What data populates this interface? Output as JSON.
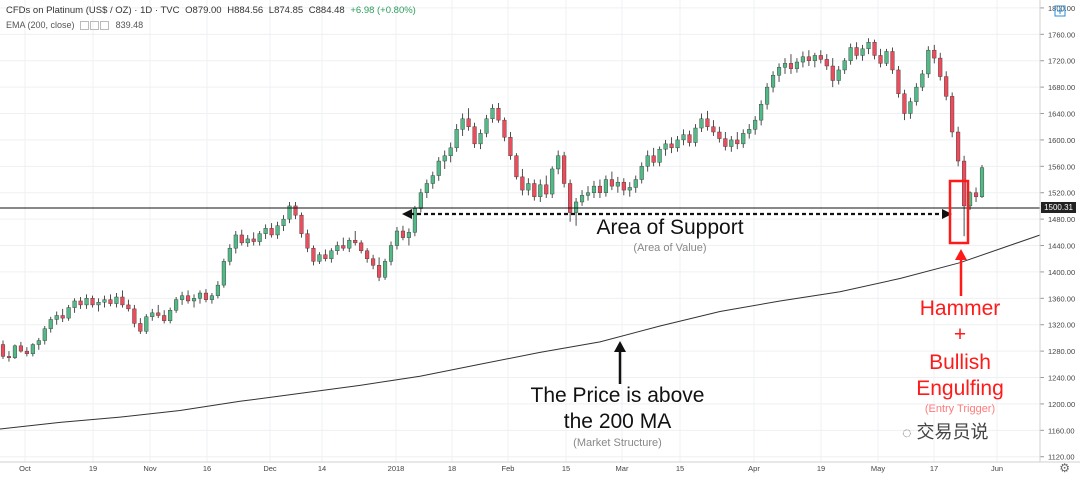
{
  "header": {
    "symbol": "CFDs on Platinum (US$ / OZ) · 1D · TVC",
    "open": "O879.00",
    "high": "H884.56",
    "low": "L874.85",
    "close": "C884.48",
    "change": "+6.98 (+0.80%)"
  },
  "indicator": {
    "label": "EMA (200, close)",
    "value": "839.48"
  },
  "price_tag": "1500.31",
  "annotations": {
    "support_title": "Area of Support",
    "support_sub": "(Area of Value)",
    "ma_title_1": "The Price is above",
    "ma_title_2": "the 200 MA",
    "ma_sub": "(Market Structure)",
    "hammer": "Hammer",
    "plus": "+",
    "bullish": "Bullish",
    "engulfing": "Engulfing",
    "entry_sub": "(Entry Trigger)"
  },
  "watermark": "交易员说",
  "colors": {
    "up": "#53b987",
    "down": "#eb4d5c",
    "accent": "#ff1a1a"
  },
  "chart_data": {
    "type": "candlestick",
    "y_ticks": [
      1120,
      1160,
      1200,
      1240,
      1280,
      1320,
      1360,
      1400,
      1440,
      1480,
      1520,
      1560,
      1600,
      1640,
      1680,
      1720,
      1760,
      1800
    ],
    "ylim": [
      1112,
      1812
    ],
    "x_tick_labels": [
      "Oct",
      "19",
      "Nov",
      "16",
      "Dec",
      "14",
      "2018",
      "18",
      "Feb",
      "15",
      "Mar",
      "15",
      "Apr",
      "19",
      "May",
      "17",
      "Jun"
    ],
    "support_level": 1500,
    "ohlc": [
      [
        1290,
        1296,
        1268,
        1272
      ],
      [
        1272,
        1280,
        1264,
        1270
      ],
      [
        1270,
        1290,
        1268,
        1288
      ],
      [
        1288,
        1294,
        1278,
        1280
      ],
      [
        1280,
        1286,
        1272,
        1276
      ],
      [
        1276,
        1292,
        1272,
        1290
      ],
      [
        1290,
        1300,
        1282,
        1296
      ],
      [
        1296,
        1318,
        1290,
        1314
      ],
      [
        1314,
        1332,
        1308,
        1328
      ],
      [
        1328,
        1340,
        1320,
        1334
      ],
      [
        1334,
        1344,
        1324,
        1330
      ],
      [
        1330,
        1350,
        1326,
        1346
      ],
      [
        1346,
        1360,
        1338,
        1356
      ],
      [
        1356,
        1362,
        1344,
        1350
      ],
      [
        1350,
        1366,
        1344,
        1360
      ],
      [
        1360,
        1364,
        1346,
        1350
      ],
      [
        1350,
        1360,
        1340,
        1354
      ],
      [
        1354,
        1364,
        1346,
        1358
      ],
      [
        1358,
        1366,
        1348,
        1352
      ],
      [
        1352,
        1368,
        1346,
        1362
      ],
      [
        1362,
        1372,
        1346,
        1350
      ],
      [
        1350,
        1358,
        1340,
        1344
      ],
      [
        1344,
        1350,
        1316,
        1322
      ],
      [
        1322,
        1330,
        1306,
        1310
      ],
      [
        1310,
        1336,
        1306,
        1332
      ],
      [
        1332,
        1344,
        1326,
        1338
      ],
      [
        1338,
        1350,
        1330,
        1334
      ],
      [
        1334,
        1342,
        1322,
        1326
      ],
      [
        1326,
        1346,
        1322,
        1342
      ],
      [
        1342,
        1362,
        1338,
        1358
      ],
      [
        1358,
        1370,
        1350,
        1364
      ],
      [
        1364,
        1372,
        1352,
        1356
      ],
      [
        1356,
        1366,
        1346,
        1360
      ],
      [
        1360,
        1372,
        1352,
        1368
      ],
      [
        1368,
        1374,
        1354,
        1358
      ],
      [
        1358,
        1368,
        1352,
        1364
      ],
      [
        1364,
        1386,
        1360,
        1380
      ],
      [
        1380,
        1420,
        1376,
        1416
      ],
      [
        1416,
        1442,
        1410,
        1436
      ],
      [
        1436,
        1462,
        1428,
        1456
      ],
      [
        1456,
        1464,
        1440,
        1444
      ],
      [
        1444,
        1456,
        1438,
        1450
      ],
      [
        1450,
        1460,
        1440,
        1446
      ],
      [
        1446,
        1462,
        1440,
        1458
      ],
      [
        1458,
        1472,
        1450,
        1466
      ],
      [
        1466,
        1474,
        1452,
        1456
      ],
      [
        1456,
        1476,
        1450,
        1470
      ],
      [
        1470,
        1486,
        1462,
        1480
      ],
      [
        1480,
        1506,
        1474,
        1500
      ],
      [
        1500,
        1506,
        1480,
        1486
      ],
      [
        1486,
        1490,
        1452,
        1458
      ],
      [
        1458,
        1464,
        1430,
        1436
      ],
      [
        1436,
        1440,
        1410,
        1416
      ],
      [
        1416,
        1430,
        1412,
        1426
      ],
      [
        1426,
        1434,
        1416,
        1420
      ],
      [
        1420,
        1436,
        1414,
        1432
      ],
      [
        1432,
        1446,
        1426,
        1440
      ],
      [
        1440,
        1452,
        1432,
        1436
      ],
      [
        1436,
        1452,
        1430,
        1448
      ],
      [
        1448,
        1462,
        1440,
        1444
      ],
      [
        1444,
        1448,
        1428,
        1432
      ],
      [
        1432,
        1436,
        1414,
        1420
      ],
      [
        1420,
        1426,
        1404,
        1410
      ],
      [
        1410,
        1422,
        1386,
        1392
      ],
      [
        1392,
        1420,
        1388,
        1416
      ],
      [
        1416,
        1446,
        1410,
        1440
      ],
      [
        1440,
        1468,
        1434,
        1462
      ],
      [
        1462,
        1470,
        1448,
        1452
      ],
      [
        1452,
        1466,
        1440,
        1460
      ],
      [
        1460,
        1500,
        1454,
        1496
      ],
      [
        1496,
        1526,
        1490,
        1520
      ],
      [
        1520,
        1540,
        1512,
        1534
      ],
      [
        1534,
        1552,
        1526,
        1546
      ],
      [
        1546,
        1574,
        1538,
        1568
      ],
      [
        1568,
        1584,
        1556,
        1576
      ],
      [
        1576,
        1596,
        1566,
        1588
      ],
      [
        1588,
        1624,
        1582,
        1616
      ],
      [
        1616,
        1640,
        1606,
        1632
      ],
      [
        1632,
        1648,
        1614,
        1620
      ],
      [
        1620,
        1626,
        1588,
        1594
      ],
      [
        1594,
        1616,
        1586,
        1610
      ],
      [
        1610,
        1638,
        1604,
        1632
      ],
      [
        1632,
        1654,
        1626,
        1648
      ],
      [
        1648,
        1656,
        1626,
        1630
      ],
      [
        1630,
        1634,
        1598,
        1604
      ],
      [
        1604,
        1612,
        1570,
        1576
      ],
      [
        1576,
        1580,
        1540,
        1544
      ],
      [
        1544,
        1556,
        1516,
        1524
      ],
      [
        1524,
        1542,
        1516,
        1534
      ],
      [
        1534,
        1540,
        1508,
        1514
      ],
      [
        1514,
        1540,
        1506,
        1532
      ],
      [
        1532,
        1546,
        1512,
        1518
      ],
      [
        1518,
        1560,
        1512,
        1556
      ],
      [
        1556,
        1584,
        1548,
        1576
      ],
      [
        1576,
        1582,
        1528,
        1534
      ],
      [
        1534,
        1540,
        1476,
        1490
      ],
      [
        1490,
        1512,
        1470,
        1506
      ],
      [
        1506,
        1524,
        1500,
        1516
      ],
      [
        1516,
        1530,
        1508,
        1520
      ],
      [
        1520,
        1538,
        1512,
        1530
      ],
      [
        1530,
        1540,
        1512,
        1520
      ],
      [
        1520,
        1546,
        1514,
        1540
      ],
      [
        1540,
        1552,
        1524,
        1530
      ],
      [
        1530,
        1544,
        1520,
        1536
      ],
      [
        1536,
        1542,
        1516,
        1524
      ],
      [
        1524,
        1536,
        1514,
        1528
      ],
      [
        1528,
        1546,
        1520,
        1540
      ],
      [
        1540,
        1566,
        1534,
        1560
      ],
      [
        1560,
        1584,
        1552,
        1576
      ],
      [
        1576,
        1588,
        1560,
        1566
      ],
      [
        1566,
        1590,
        1560,
        1586
      ],
      [
        1586,
        1600,
        1576,
        1594
      ],
      [
        1594,
        1604,
        1580,
        1588
      ],
      [
        1588,
        1606,
        1582,
        1600
      ],
      [
        1600,
        1616,
        1592,
        1608
      ],
      [
        1608,
        1614,
        1590,
        1596
      ],
      [
        1596,
        1624,
        1590,
        1618
      ],
      [
        1618,
        1640,
        1612,
        1632
      ],
      [
        1632,
        1644,
        1614,
        1620
      ],
      [
        1620,
        1630,
        1606,
        1612
      ],
      [
        1612,
        1620,
        1596,
        1602
      ],
      [
        1602,
        1612,
        1584,
        1590
      ],
      [
        1590,
        1606,
        1582,
        1600
      ],
      [
        1600,
        1612,
        1586,
        1594
      ],
      [
        1594,
        1616,
        1588,
        1610
      ],
      [
        1610,
        1624,
        1602,
        1616
      ],
      [
        1616,
        1636,
        1608,
        1630
      ],
      [
        1630,
        1660,
        1622,
        1654
      ],
      [
        1654,
        1686,
        1646,
        1680
      ],
      [
        1680,
        1704,
        1672,
        1698
      ],
      [
        1698,
        1716,
        1688,
        1710
      ],
      [
        1710,
        1724,
        1700,
        1716
      ],
      [
        1716,
        1730,
        1700,
        1708
      ],
      [
        1708,
        1724,
        1702,
        1718
      ],
      [
        1718,
        1734,
        1710,
        1726
      ],
      [
        1726,
        1736,
        1712,
        1720
      ],
      [
        1720,
        1732,
        1710,
        1728
      ],
      [
        1728,
        1736,
        1716,
        1722
      ],
      [
        1722,
        1730,
        1706,
        1712
      ],
      [
        1712,
        1724,
        1680,
        1690
      ],
      [
        1690,
        1712,
        1684,
        1706
      ],
      [
        1706,
        1724,
        1700,
        1720
      ],
      [
        1720,
        1746,
        1714,
        1740
      ],
      [
        1740,
        1748,
        1722,
        1728
      ],
      [
        1728,
        1744,
        1720,
        1738
      ],
      [
        1738,
        1754,
        1730,
        1748
      ],
      [
        1748,
        1752,
        1722,
        1728
      ],
      [
        1728,
        1738,
        1710,
        1716
      ],
      [
        1716,
        1738,
        1712,
        1734
      ],
      [
        1734,
        1740,
        1700,
        1706
      ],
      [
        1706,
        1712,
        1664,
        1670
      ],
      [
        1670,
        1676,
        1630,
        1640
      ],
      [
        1640,
        1664,
        1632,
        1658
      ],
      [
        1658,
        1686,
        1652,
        1680
      ],
      [
        1680,
        1706,
        1674,
        1700
      ],
      [
        1700,
        1742,
        1694,
        1736
      ],
      [
        1736,
        1744,
        1716,
        1724
      ],
      [
        1724,
        1732,
        1690,
        1696
      ],
      [
        1696,
        1704,
        1660,
        1666
      ],
      [
        1666,
        1672,
        1604,
        1612
      ],
      [
        1612,
        1620,
        1560,
        1568
      ],
      [
        1568,
        1576,
        1454,
        1500
      ],
      [
        1500,
        1522,
        1494,
        1520
      ],
      [
        1520,
        1528,
        1506,
        1514
      ],
      [
        1514,
        1562,
        1512,
        1558
      ]
    ],
    "ma": [
      [
        0,
        1162
      ],
      [
        60,
        1172
      ],
      [
        120,
        1180
      ],
      [
        180,
        1190
      ],
      [
        240,
        1204
      ],
      [
        300,
        1216
      ],
      [
        360,
        1228
      ],
      [
        420,
        1242
      ],
      [
        480,
        1260
      ],
      [
        540,
        1278
      ],
      [
        600,
        1294
      ],
      [
        660,
        1318
      ],
      [
        720,
        1340
      ],
      [
        780,
        1356
      ],
      [
        840,
        1370
      ],
      [
        900,
        1390
      ],
      [
        960,
        1414
      ],
      [
        1040,
        1456
      ]
    ]
  }
}
